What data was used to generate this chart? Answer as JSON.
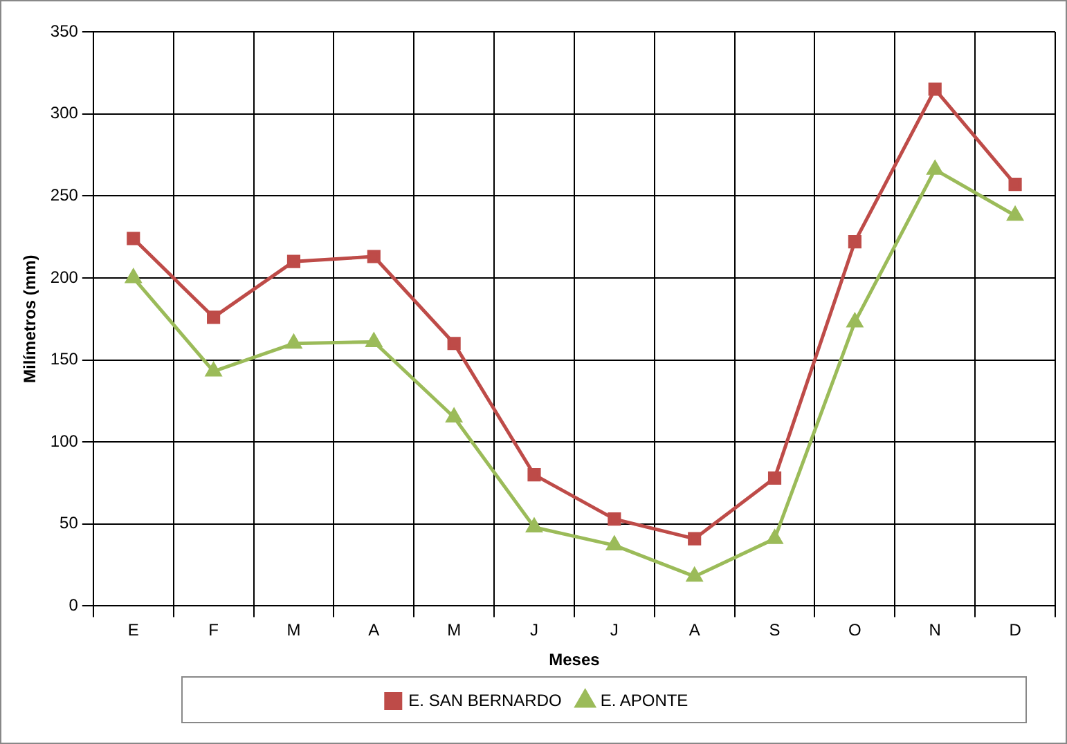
{
  "chart_data": {
    "type": "line",
    "xlabel": "Meses",
    "ylabel": "Milímetros (mm)",
    "categories": [
      "E",
      "F",
      "M",
      "A",
      "M",
      "J",
      "J",
      "A",
      "S",
      "O",
      "N",
      "D"
    ],
    "series": [
      {
        "name": "E. SAN BERNARDO",
        "color": "#be4b48",
        "marker": "square",
        "values": [
          224,
          176,
          210,
          213,
          160,
          80,
          53,
          41,
          78,
          222,
          315,
          257
        ]
      },
      {
        "name": "E. APONTE",
        "color": "#9bbb59",
        "marker": "triangle",
        "values": [
          200,
          143,
          160,
          161,
          115,
          48,
          37,
          18,
          41,
          173,
          266,
          238
        ]
      }
    ],
    "ylim": [
      0,
      350
    ],
    "yticks": [
      0,
      50,
      100,
      150,
      200,
      250,
      300,
      350
    ],
    "grid": true,
    "legend": "bottom",
    "line_style": "solid"
  }
}
